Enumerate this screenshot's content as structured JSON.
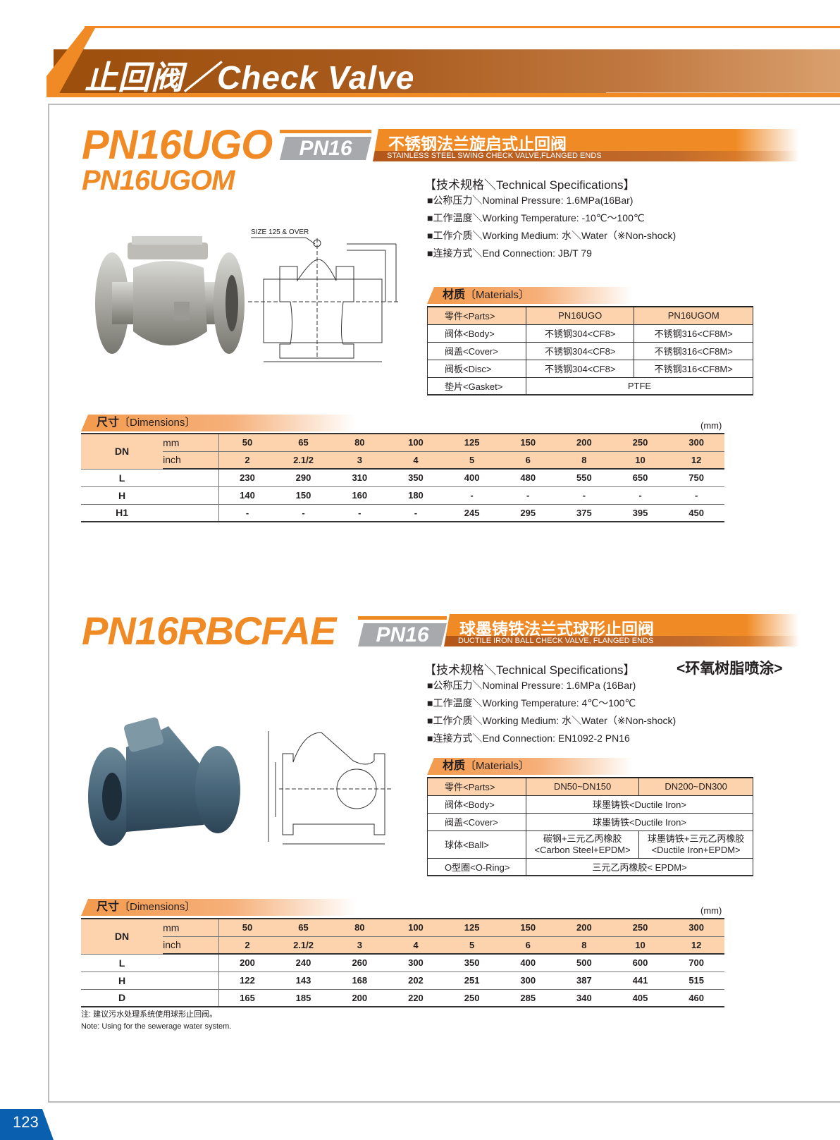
{
  "header": {
    "title": "止回阀／Check Valve"
  },
  "colors": {
    "accent": "#f08a24",
    "banner": "#9c4f0c",
    "badge": "#a7a9ac",
    "table_header": "#fcd3ad",
    "page_number_bg": "#0a5fae"
  },
  "product1": {
    "model": "PN16UGO",
    "model2": "PN16UGOM",
    "badge": "PN16",
    "title_cn": "不锈钢法兰旋启式止回阀",
    "title_en": "STAINLESS STEEL SWING CHECK VALVE,FLANGED ENDS",
    "drawing_note": "SIZE 125 & OVER",
    "specs_title": "【技术规格＼Technical Specifications】",
    "specs": [
      "■公称压力＼Nominal Pressure: 1.6MPa(16Bar)",
      "■工作温度＼Working Temperature: -10℃～100℃",
      "■工作介质＼Working Medium: 水＼Water（※Non-shock)",
      "■连接方式＼End Connection: JB/T 79"
    ],
    "materials_label_cn": "材质",
    "materials_label_en": "〔Materials〕",
    "materials": {
      "header": [
        "零件<Parts>",
        "PN16UGO",
        "PN16UGOM"
      ],
      "rows": [
        [
          "阀体<Body>",
          "不锈钢304<CF8>",
          "不锈钢316<CF8M>"
        ],
        [
          "阀盖<Cover>",
          "不锈钢304<CF8>",
          "不锈钢316<CF8M>"
        ],
        [
          "阀板<Disc>",
          "不锈钢304<CF8>",
          "不锈钢316<CF8M>"
        ],
        [
          "垫片<Gasket>",
          "PTFE"
        ]
      ]
    },
    "dimensions_label_cn": "尺寸",
    "dimensions_label_en": "〔Dimensions〕",
    "unit": "(mm)",
    "dimensions": {
      "dn": "DN",
      "mm_label": "mm",
      "inch_label": "inch",
      "mm": [
        "50",
        "65",
        "80",
        "100",
        "125",
        "150",
        "200",
        "250",
        "300"
      ],
      "inch": [
        "2",
        "2.1/2",
        "3",
        "4",
        "5",
        "6",
        "8",
        "10",
        "12"
      ],
      "rows": [
        {
          "label": "L",
          "values": [
            "230",
            "290",
            "310",
            "350",
            "400",
            "480",
            "550",
            "650",
            "750"
          ]
        },
        {
          "label": "H",
          "values": [
            "140",
            "150",
            "160",
            "180",
            "-",
            "-",
            "-",
            "-",
            "-"
          ]
        },
        {
          "label": "H1",
          "values": [
            "-",
            "-",
            "-",
            "-",
            "245",
            "295",
            "375",
            "395",
            "450"
          ]
        }
      ]
    }
  },
  "product2": {
    "model": "PN16RBCFAE",
    "badge": "PN16",
    "title_cn": "球墨铸铁法兰式球形止回阀",
    "title_en": "DUCTILE IRON BALL CHECK VALVE, FLANGED ENDS",
    "coating": "<环氧树脂喷涂>",
    "specs_title": "【技术规格＼Technical Specifications】",
    "specs": [
      "■公称压力＼Nominal Pressure: 1.6MPa (16Bar)",
      "■工作温度＼Working Temperature: 4℃～100℃",
      "■工作介质＼Working Medium: 水＼Water（※Non-shock)",
      "■连接方式＼End Connection: EN1092-2 PN16"
    ],
    "materials_label_cn": "材质",
    "materials_label_en": "〔Materials〕",
    "materials": {
      "header": [
        "零件<Parts>",
        "DN50~DN150",
        "DN200~DN300"
      ],
      "rows": [
        [
          "阀体<Body>",
          "球墨铸铁<Ductile Iron>"
        ],
        [
          "阀盖<Cover>",
          "球墨铸铁<Ductile Iron>"
        ],
        [
          "球体<Ball>",
          "碳钢+三元乙丙橡胶",
          "<Carbon Steel+EPDM>",
          "球墨铸铁+三元乙丙橡胶",
          "<Ductile Iron+EPDM>"
        ],
        [
          "O型圈<O-Ring>",
          "三元乙丙橡胶< EPDM>"
        ]
      ]
    },
    "dimensions_label_cn": "尺寸",
    "dimensions_label_en": "〔Dimensions〕",
    "unit": "(mm)",
    "dimensions": {
      "dn": "DN",
      "mm_label": "mm",
      "inch_label": "inch",
      "mm": [
        "50",
        "65",
        "80",
        "100",
        "125",
        "150",
        "200",
        "250",
        "300"
      ],
      "inch": [
        "2",
        "2.1/2",
        "3",
        "4",
        "5",
        "6",
        "8",
        "10",
        "12"
      ],
      "rows": [
        {
          "label": "L",
          "values": [
            "200",
            "240",
            "260",
            "300",
            "350",
            "400",
            "500",
            "600",
            "700"
          ]
        },
        {
          "label": "H",
          "values": [
            "122",
            "143",
            "168",
            "202",
            "251",
            "300",
            "387",
            "441",
            "515"
          ]
        },
        {
          "label": "D",
          "values": [
            "165",
            "185",
            "200",
            "220",
            "250",
            "285",
            "340",
            "405",
            "460"
          ]
        }
      ]
    },
    "note_cn": "注: 建议污水处理系统使用球形止回阀。",
    "note_en": "Note: Using for the sewerage water system."
  },
  "footer": {
    "page_number": "123"
  }
}
